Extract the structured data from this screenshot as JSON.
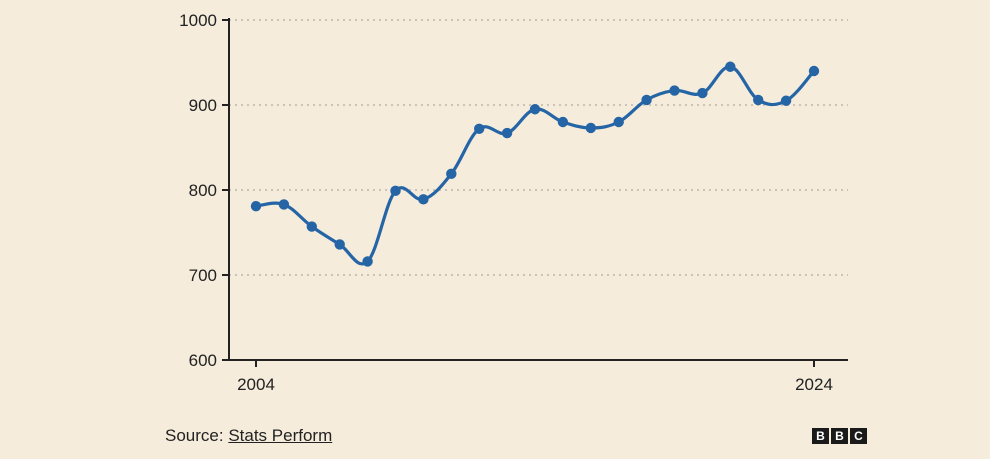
{
  "chart_data": {
    "type": "line",
    "title": "",
    "xlabel": "",
    "ylabel": "",
    "x": [
      2004,
      2005,
      2006,
      2007,
      2008,
      2009,
      2010,
      2011,
      2012,
      2013,
      2014,
      2015,
      2016,
      2017,
      2018,
      2019,
      2020,
      2021,
      2022,
      2023,
      2024
    ],
    "series": [
      {
        "values": [
          781,
          783,
          757,
          736,
          716,
          799,
          789,
          819,
          872,
          867,
          895,
          880,
          873,
          880,
          906,
          917,
          914,
          945,
          906,
          905,
          940
        ]
      }
    ],
    "xticks": [
      "2004",
      "2024"
    ],
    "yticks": [
      "600",
      "700",
      "800",
      "900",
      "1000"
    ],
    "ylim": [
      600,
      1000
    ],
    "xlim": [
      2004,
      2024
    ],
    "grid": "horizontal-dotted",
    "legend": "none",
    "colors": {
      "line": "#2565a6",
      "grid": "#c9c3b8",
      "axis": "#222222",
      "background": "#f5ecdc"
    }
  },
  "footer": {
    "source_prefix": "Source: ",
    "source_name": "Stats Perform",
    "logo_letters": [
      "B",
      "B",
      "C"
    ]
  }
}
